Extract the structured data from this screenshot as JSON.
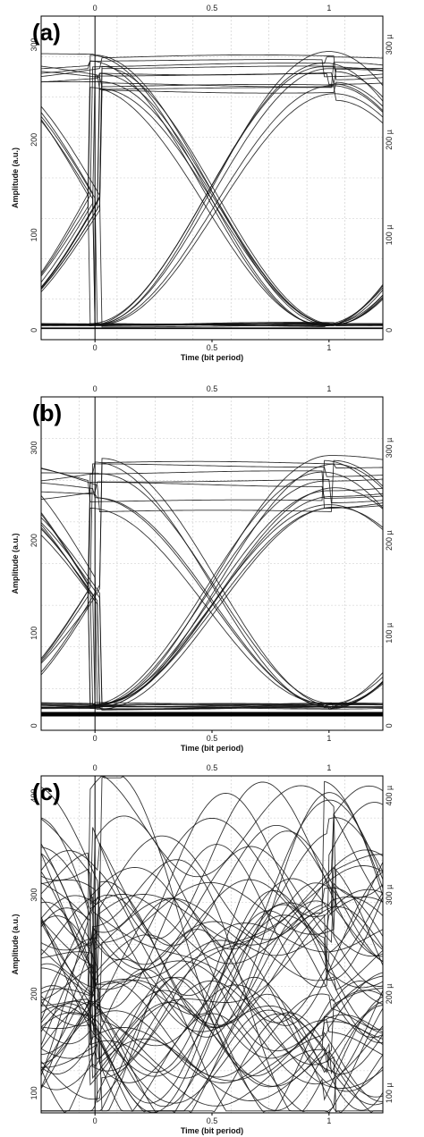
{
  "chart_data": [
    {
      "type": "line",
      "panel_label": "(a)",
      "xlabel": "Time (bit period)",
      "ylabel": "Amplitude (a.u.)",
      "xlim": [
        -0.23,
        1.23
      ],
      "ylim": [
        -10,
        330
      ],
      "x_ticks_bottom": [
        {
          "v": 0,
          "t": "0"
        },
        {
          "v": 0.5,
          "t": "0.5"
        },
        {
          "v": 1,
          "t": "1"
        }
      ],
      "x_ticks_top": [
        {
          "v": 0,
          "t": "0"
        },
        {
          "v": 0.5,
          "t": "0.5"
        },
        {
          "v": 1,
          "t": "1"
        }
      ],
      "y_ticks_left": [
        {
          "v": 0,
          "t": "0"
        },
        {
          "v": 100,
          "t": "100"
        },
        {
          "v": 200,
          "t": "200"
        },
        {
          "v": 300,
          "t": "300"
        }
      ],
      "y_ticks_right": [
        {
          "v": 0,
          "t": "0"
        },
        {
          "v": 100,
          "t": "100 µ"
        },
        {
          "v": 200,
          "t": "200 µ"
        },
        {
          "v": 300,
          "t": "300 µ"
        }
      ],
      "grid": true,
      "eye": {
        "level_high": 268,
        "level_low": 5,
        "cross_level": 140,
        "cross_x": [
          0,
          1
        ],
        "high_spread": 38,
        "low_spread": 3,
        "noise_floor": 3,
        "n_traces": 34
      }
    },
    {
      "type": "line",
      "panel_label": "(b)",
      "xlabel": "Time (bit period)",
      "ylabel": "Amplitude (a.u.)",
      "xlim": [
        -0.23,
        1.23
      ],
      "ylim": [
        -5,
        355
      ],
      "x_ticks_bottom": [
        {
          "v": 0,
          "t": "0"
        },
        {
          "v": 0.5,
          "t": "0.5"
        },
        {
          "v": 1,
          "t": "1"
        }
      ],
      "x_ticks_top": [
        {
          "v": 0,
          "t": "0"
        },
        {
          "v": 0.5,
          "t": "0.5"
        },
        {
          "v": 1,
          "t": "1"
        }
      ],
      "y_ticks_left": [
        {
          "v": 0,
          "t": "0"
        },
        {
          "v": 100,
          "t": "100"
        },
        {
          "v": 200,
          "t": "200"
        },
        {
          "v": 300,
          "t": "300"
        }
      ],
      "y_ticks_right": [
        {
          "v": 0,
          "t": "0"
        },
        {
          "v": 100,
          "t": "100 µ"
        },
        {
          "v": 200,
          "t": "200 µ"
        },
        {
          "v": 300,
          "t": "300 µ"
        }
      ],
      "grid": true,
      "eye": {
        "level_high": 262,
        "level_low": 20,
        "cross_level": 145,
        "cross_x": [
          0,
          1
        ],
        "high_spread": 45,
        "low_spread": 8,
        "noise_floor": 12,
        "n_traces": 34
      }
    },
    {
      "type": "line",
      "panel_label": "(c)",
      "xlabel": "Time (bit period)",
      "ylabel": "Amplitude (a.u.)",
      "xlim": [
        -0.23,
        1.23
      ],
      "ylim": [
        80,
        420
      ],
      "x_ticks_bottom": [
        {
          "v": 0,
          "t": "0"
        },
        {
          "v": 0.5,
          "t": "0.5"
        },
        {
          "v": 1,
          "t": "1"
        }
      ],
      "x_ticks_top": [
        {
          "v": 0,
          "t": "0"
        },
        {
          "v": 0.5,
          "t": "0.5"
        },
        {
          "v": 1,
          "t": "1"
        }
      ],
      "y_ticks_left": [
        {
          "v": 100,
          "t": "100"
        },
        {
          "v": 200,
          "t": "200"
        },
        {
          "v": 300,
          "t": "300"
        },
        {
          "v": 400,
          "t": "400"
        }
      ],
      "y_ticks_right": [
        {
          "v": 100,
          "t": "100 µ"
        },
        {
          "v": 200,
          "t": "200 µ"
        },
        {
          "v": 300,
          "t": "300 µ"
        },
        {
          "v": 400,
          "t": "400 µ"
        }
      ],
      "grid": true,
      "eye": {
        "level_high": 300,
        "level_low": 130,
        "cross_level": 215,
        "cross_x": [
          0,
          1
        ],
        "high_spread": 110,
        "low_spread": 60,
        "noise_floor": 0,
        "n_traces": 60,
        "closed": true
      }
    }
  ]
}
